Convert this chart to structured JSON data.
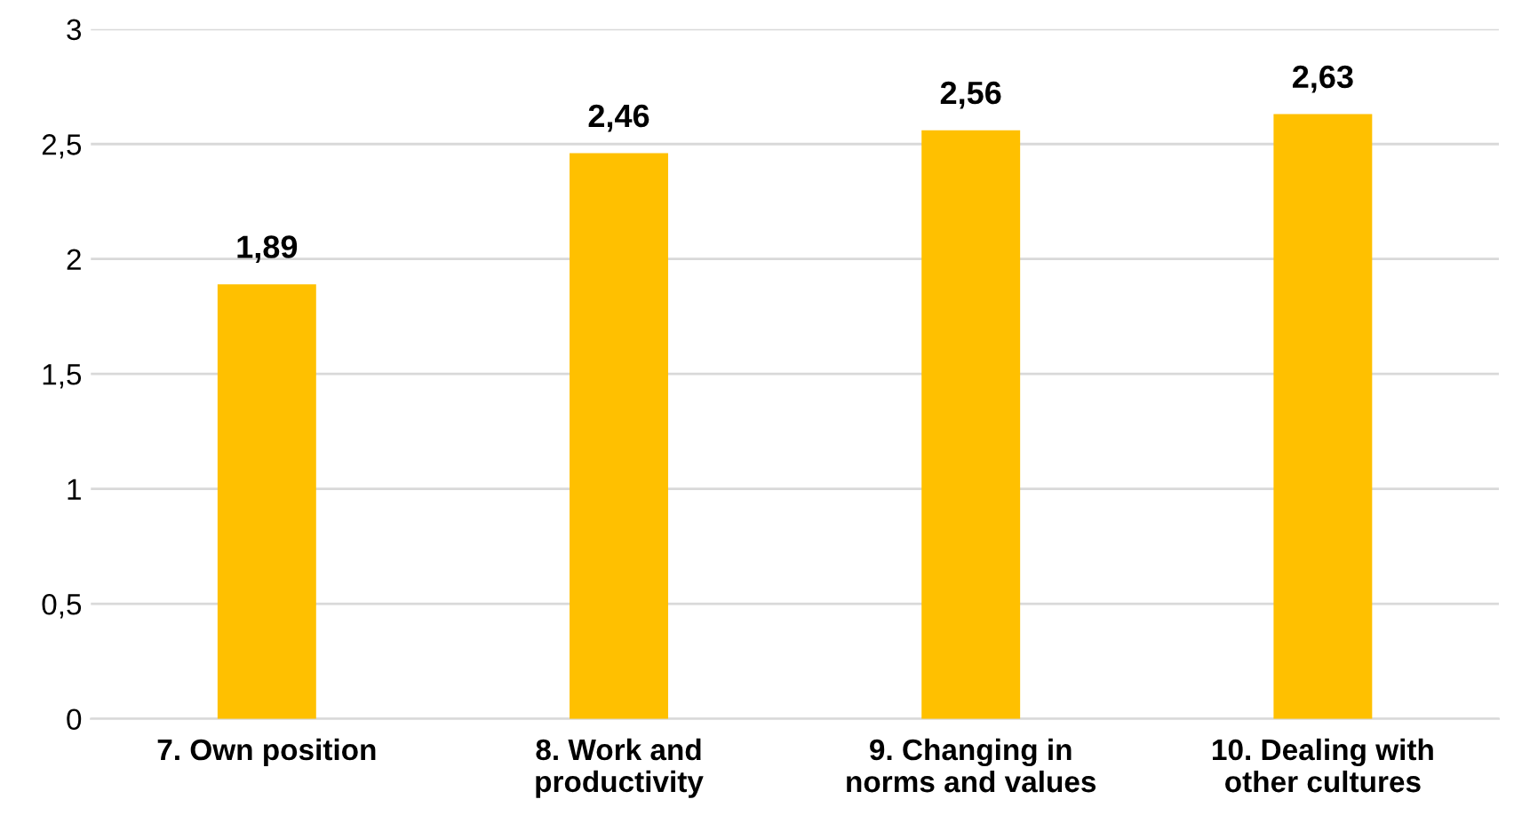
{
  "chart_data": {
    "type": "bar",
    "categories": [
      "7. Own position",
      "8. Work and\nproductivity",
      "9. Changing in\nnorms and values",
      "10. Dealing with\nother cultures"
    ],
    "values": [
      1.89,
      2.46,
      2.56,
      2.63
    ],
    "value_labels": [
      "1,89",
      "2,46",
      "2,56",
      "2,63"
    ],
    "color": "#ffc000",
    "ylim": [
      0,
      3
    ],
    "yticks": [
      0,
      {
        "value": 0.5,
        "label": "0,5"
      },
      1,
      {
        "value": 1.5,
        "label": "1,5"
      },
      2,
      {
        "value": 2.5,
        "label": "2,5"
      },
      3
    ],
    "grid": "y"
  }
}
